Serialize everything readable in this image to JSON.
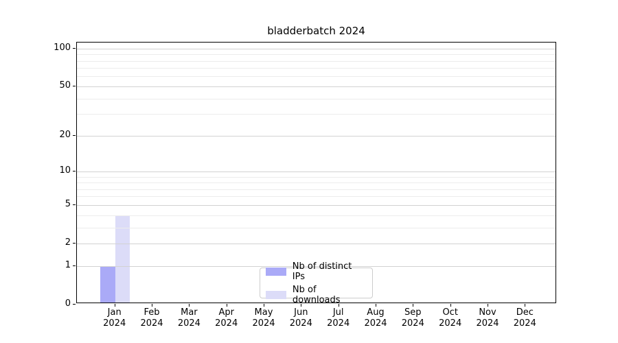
{
  "chart_data": {
    "type": "bar",
    "title": "bladderbatch 2024",
    "categories": [
      "Jan 2024",
      "Feb 2024",
      "Mar 2024",
      "Apr 2024",
      "May 2024",
      "Jun 2024",
      "Jul 2024",
      "Aug 2024",
      "Sep 2024",
      "Oct 2024",
      "Nov 2024",
      "Dec 2024"
    ],
    "series": [
      {
        "name": "Nb of distinct IPs",
        "color": "#aaaaf7",
        "values": [
          1,
          0,
          0,
          0,
          0,
          0,
          0,
          0,
          0,
          0,
          0,
          0
        ]
      },
      {
        "name": "Nb of downloads",
        "color": "#dcdcf8",
        "values": [
          4,
          0,
          0,
          0,
          0,
          0,
          0,
          0,
          0,
          0,
          0,
          0
        ]
      }
    ],
    "yscale": "log1p",
    "ylim": [
      0,
      112
    ],
    "y_ticks": [
      0,
      1,
      2,
      5,
      10,
      20,
      50,
      100
    ],
    "y_minor_gridlines": [
      3,
      4,
      6,
      7,
      8,
      9,
      30,
      40,
      60,
      70,
      80,
      90
    ],
    "grid": "horizontal",
    "legend_position": "bottom-center"
  }
}
